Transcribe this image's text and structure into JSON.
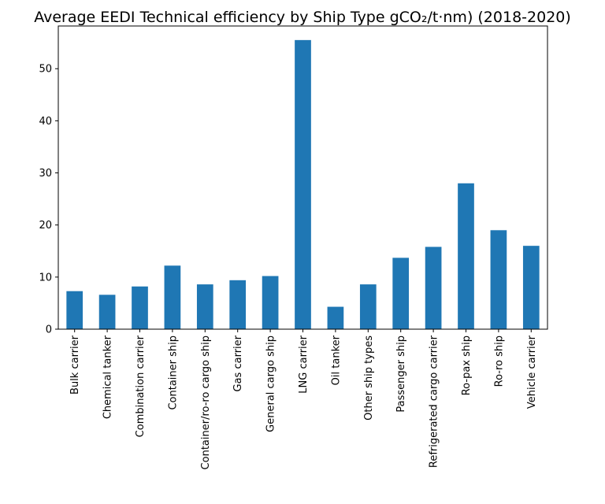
{
  "chart_data": {
    "type": "bar",
    "title": "Average EEDI Technical efficiency by Ship Type gCO₂/t·nm) (2018-2020)",
    "xlabel": "",
    "ylabel": "",
    "ylim": [
      0,
      58.2
    ],
    "yticks": [
      0,
      10,
      20,
      30,
      40,
      50
    ],
    "color": "#1f77b4",
    "grid": false,
    "legend": false,
    "categories": [
      "Bulk carrier",
      "Chemical tanker",
      "Combination carrier",
      "Container ship",
      "Container/ro-ro cargo ship",
      "Gas carrier",
      "General cargo ship",
      "LNG carrier",
      "Oil tanker",
      "Other ship types",
      "Passenger ship",
      "Refrigerated cargo carrier",
      "Ro-pax ship",
      "Ro-ro ship",
      "Vehicle carrier"
    ],
    "values": [
      7.3,
      6.6,
      8.2,
      12.2,
      8.6,
      9.4,
      10.2,
      55.5,
      4.3,
      8.6,
      13.7,
      15.8,
      28.0,
      19.0,
      16.0
    ]
  }
}
